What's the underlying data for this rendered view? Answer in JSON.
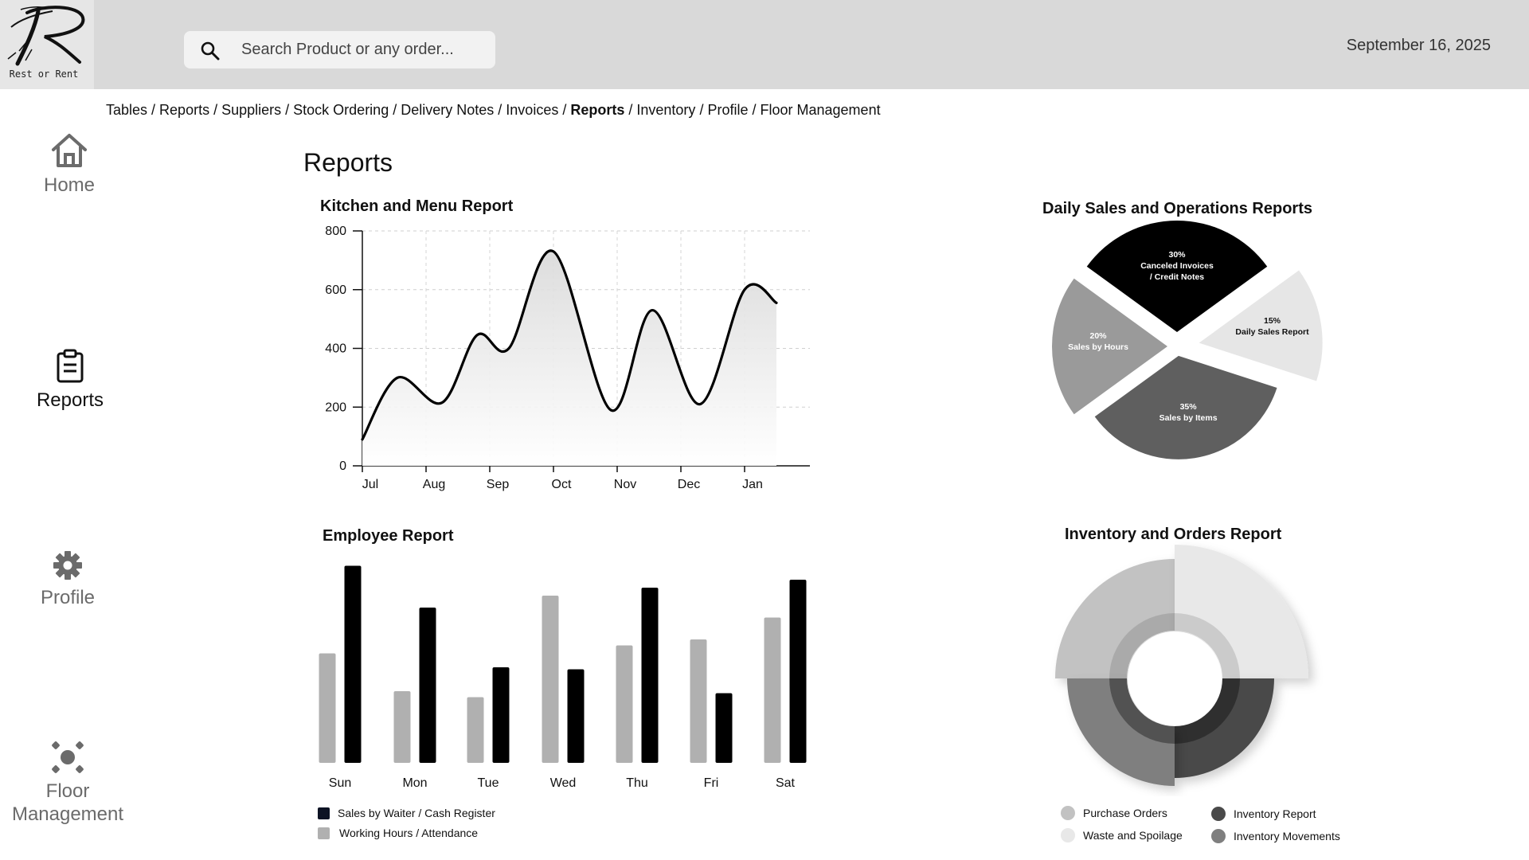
{
  "header": {
    "logo_text": "Rest or Rent",
    "search_placeholder": "Search Product or any order...",
    "date": "September 16, 2025"
  },
  "breadcrumb": [
    {
      "label": "Tables",
      "active": false
    },
    {
      "label": "Reports",
      "active": false
    },
    {
      "label": "Suppliers",
      "active": false
    },
    {
      "label": "Stock Ordering",
      "active": false
    },
    {
      "label": "Delivery Notes",
      "active": false
    },
    {
      "label": "Invoices",
      "active": false
    },
    {
      "label": "Reports",
      "active": true
    },
    {
      "label": "Inventory",
      "active": false
    },
    {
      "label": "Profile",
      "active": false
    },
    {
      "label": "Floor Management",
      "active": false
    }
  ],
  "sidebar": {
    "items": [
      {
        "label": "Home",
        "icon": "home-icon",
        "active": false
      },
      {
        "label": "Reports",
        "icon": "clipboard-icon",
        "active": true
      },
      {
        "label": "Profile",
        "icon": "gear-icon",
        "active": false
      },
      {
        "label": "Floor\nManagement",
        "icon": "floor-icon",
        "active": false
      }
    ]
  },
  "page": {
    "title": "Reports"
  },
  "chart_data": [
    {
      "type": "line",
      "title": "Kitchen and Menu Report",
      "categories": [
        "Jul",
        "Aug",
        "Sep",
        "Oct",
        "Nov",
        "Dec",
        "Jan"
      ],
      "yticks": [
        0,
        200,
        400,
        600,
        800
      ],
      "ylim": [
        0,
        800
      ],
      "grid": true,
      "points": [
        {
          "x": 0.0,
          "y": 90
        },
        {
          "x": 0.55,
          "y": 300
        },
        {
          "x": 1.25,
          "y": 215
        },
        {
          "x": 1.8,
          "y": 445
        },
        {
          "x": 2.3,
          "y": 400
        },
        {
          "x": 3.0,
          "y": 730
        },
        {
          "x": 3.9,
          "y": 190
        },
        {
          "x": 4.55,
          "y": 530
        },
        {
          "x": 5.3,
          "y": 210
        },
        {
          "x": 6.0,
          "y": 600
        },
        {
          "x": 6.5,
          "y": 555
        }
      ]
    },
    {
      "type": "pie",
      "title": "Daily Sales and Operations Reports",
      "slices": [
        {
          "label": "Canceled Invoices / Credit Notes",
          "value": 30,
          "pct": "30%",
          "color": "#000000",
          "text_color": "#ffffff"
        },
        {
          "label": "Daily Sales Report",
          "value": 15,
          "pct": "15%",
          "color": "#e6e6e6",
          "text_color": "#111111"
        },
        {
          "label": "Sales by Items",
          "value": 35,
          "pct": "35%",
          "color": "#5f5f5f",
          "text_color": "#ffffff"
        },
        {
          "label": "Sales by Hours",
          "value": 20,
          "pct": "20%",
          "color": "#9a9a9a",
          "text_color": "#ffffff"
        }
      ]
    },
    {
      "type": "bar",
      "title": "Employee Report",
      "categories": [
        "Sun",
        "Mon",
        "Tue",
        "Wed",
        "Thu",
        "Fri",
        "Sat"
      ],
      "series": [
        {
          "name": "Working Hours / Attendance",
          "color": "#b0b0b0",
          "values": [
            55,
            36,
            33,
            84,
            59,
            62,
            73
          ]
        },
        {
          "name": "Sales by Waiter / Cash Register",
          "color": "#000000",
          "values": [
            99,
            78,
            48,
            47,
            88,
            35,
            92
          ]
        }
      ],
      "ylim": [
        0,
        100
      ],
      "legend_series_order": [
        1,
        0
      ]
    },
    {
      "type": "pie",
      "title": "Inventory and Orders Report",
      "slices": [
        {
          "label": "Purchase Orders",
          "color": "#c2c2c2"
        },
        {
          "label": "Waste and Spoilage",
          "color": "#e8e8e8"
        },
        {
          "label": "Inventory Report",
          "color": "#4a4a4a"
        },
        {
          "label": "Inventory Movements",
          "color": "#7f7f7f"
        }
      ]
    }
  ]
}
